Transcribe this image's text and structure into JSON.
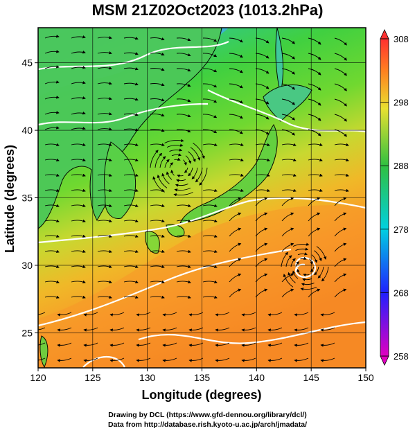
{
  "title": "MSM 21Z02Oct2023 (1013.2hPa)",
  "x_axis": {
    "label": "Longitude (degrees)",
    "ticks": [
      "120",
      "125",
      "130",
      "135",
      "140",
      "145",
      "150"
    ],
    "range": [
      120,
      150
    ]
  },
  "y_axis": {
    "label": "Latitude  (degrees)",
    "ticks": [
      "25",
      "30",
      "35",
      "40",
      "45"
    ],
    "range": [
      22.4,
      47.6
    ]
  },
  "colorbar": {
    "ticks": [
      "258",
      "268",
      "278",
      "288",
      "298",
      "308"
    ],
    "range": [
      258,
      308
    ],
    "colors": [
      "#e000c0",
      "#2020ff",
      "#00d0e0",
      "#30c040",
      "#e8e030",
      "#ff8020",
      "#ff3030"
    ]
  },
  "footer": {
    "line1": "Drawing by DCL (https://www.gfd-dennou.org/library/dcl/)",
    "line2": "Data from http://database.rish.kyoto-u.ac.jp/arch/jmadata/"
  }
}
